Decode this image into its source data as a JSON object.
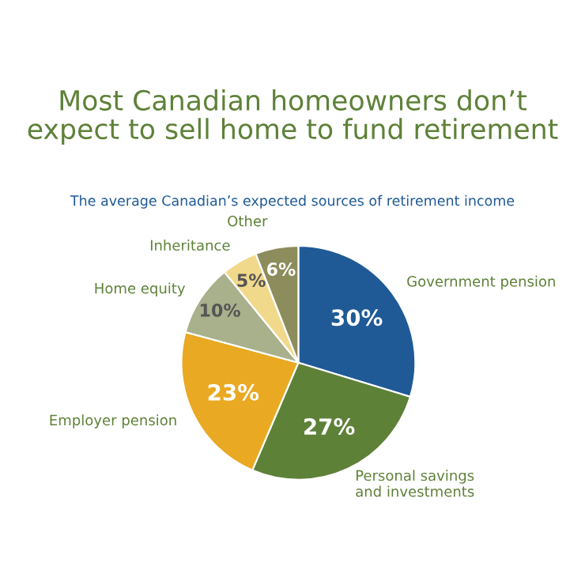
{
  "chart_data": {
    "type": "pie",
    "title": "Most Canadian homeowners don’t\nexpect to sell home to fund retirement",
    "subtitle": "The average Canadian’s expected sources of retirement income",
    "categories": [
      "Government pension",
      "Personal savings\nand investments",
      "Employer pension",
      "Home equity",
      "Inheritance",
      "Other"
    ],
    "values": [
      30,
      27,
      23,
      10,
      5,
      6
    ],
    "colors": [
      "#1f5a96",
      "#5e8138",
      "#e9a922",
      "#a9b08c",
      "#f1d98c",
      "#8d8c5c"
    ],
    "value_labels": [
      "30%",
      "27%",
      "23%",
      "10%",
      "5%",
      "6%"
    ]
  }
}
